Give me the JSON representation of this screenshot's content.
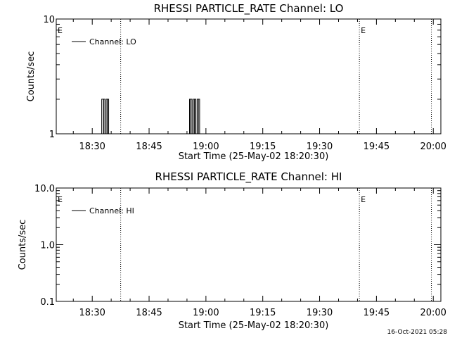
{
  "footer": {
    "timestamp": "16-Oct-2021 05:28"
  },
  "chart_data": [
    {
      "type": "line",
      "title": "RHESSI PARTICLE_RATE Channel: LO",
      "xlabel": "Start Time (25-May-02 18:20:30)",
      "ylabel": "Counts/sec",
      "yscale": "log",
      "ylim": [
        1,
        10
      ],
      "yticks": [
        {
          "value": 1,
          "label": "1"
        },
        {
          "value": 10,
          "label": "10"
        }
      ],
      "xlim": [
        "18:20:30",
        "20:02:00"
      ],
      "xticks": [
        "18:30",
        "18:45",
        "19:00",
        "19:15",
        "19:30",
        "19:45",
        "20:00"
      ],
      "grid": false,
      "legend": {
        "position": "top-left",
        "entries": [
          "Channel: LO"
        ]
      },
      "event_markers": [
        {
          "time": "18:20:30",
          "label": "E",
          "line": false
        },
        {
          "time": "18:37:30",
          "label": "",
          "line": true
        },
        {
          "time": "19:40:30",
          "label": "E",
          "line": true
        },
        {
          "time": "19:59:30",
          "label": "",
          "line": true
        }
      ],
      "series": [
        {
          "name": "Channel: LO",
          "points": [
            [
              "18:32:00",
              1
            ],
            [
              "18:32:30",
              2
            ],
            [
              "18:33:00",
              2
            ],
            [
              "18:33:20",
              1
            ],
            [
              "18:33:40",
              2
            ],
            [
              "18:34:00",
              2
            ],
            [
              "18:34:20",
              1
            ],
            [
              "18:55:20",
              1
            ],
            [
              "18:55:40",
              2
            ],
            [
              "18:56:00",
              2
            ],
            [
              "18:56:20",
              1
            ],
            [
              "18:56:40",
              2
            ],
            [
              "18:57:00",
              2
            ],
            [
              "18:57:20",
              1
            ],
            [
              "18:57:40",
              2
            ],
            [
              "18:58:00",
              2
            ],
            [
              "18:58:20",
              1
            ]
          ]
        }
      ]
    },
    {
      "type": "line",
      "title": "RHESSI PARTICLE_RATE Channel: HI",
      "xlabel": "Start Time (25-May-02 18:20:30)",
      "ylabel": "Counts/sec",
      "yscale": "log",
      "ylim": [
        0.1,
        10
      ],
      "yticks": [
        {
          "value": 0.1,
          "label": "0.1"
        },
        {
          "value": 1,
          "label": "1.0"
        },
        {
          "value": 10,
          "label": "10.0"
        }
      ],
      "xlim": [
        "18:20:30",
        "20:02:00"
      ],
      "xticks": [
        "18:30",
        "18:45",
        "19:00",
        "19:15",
        "19:30",
        "19:45",
        "20:00"
      ],
      "grid": false,
      "legend": {
        "position": "top-left",
        "entries": [
          "Channel: HI"
        ]
      },
      "event_markers": [
        {
          "time": "18:20:30",
          "label": "E",
          "line": false
        },
        {
          "time": "18:37:30",
          "label": "",
          "line": true
        },
        {
          "time": "19:40:30",
          "label": "E",
          "line": true
        },
        {
          "time": "19:59:30",
          "label": "",
          "line": true
        }
      ],
      "series": [
        {
          "name": "Channel: HI",
          "points": []
        }
      ]
    }
  ]
}
